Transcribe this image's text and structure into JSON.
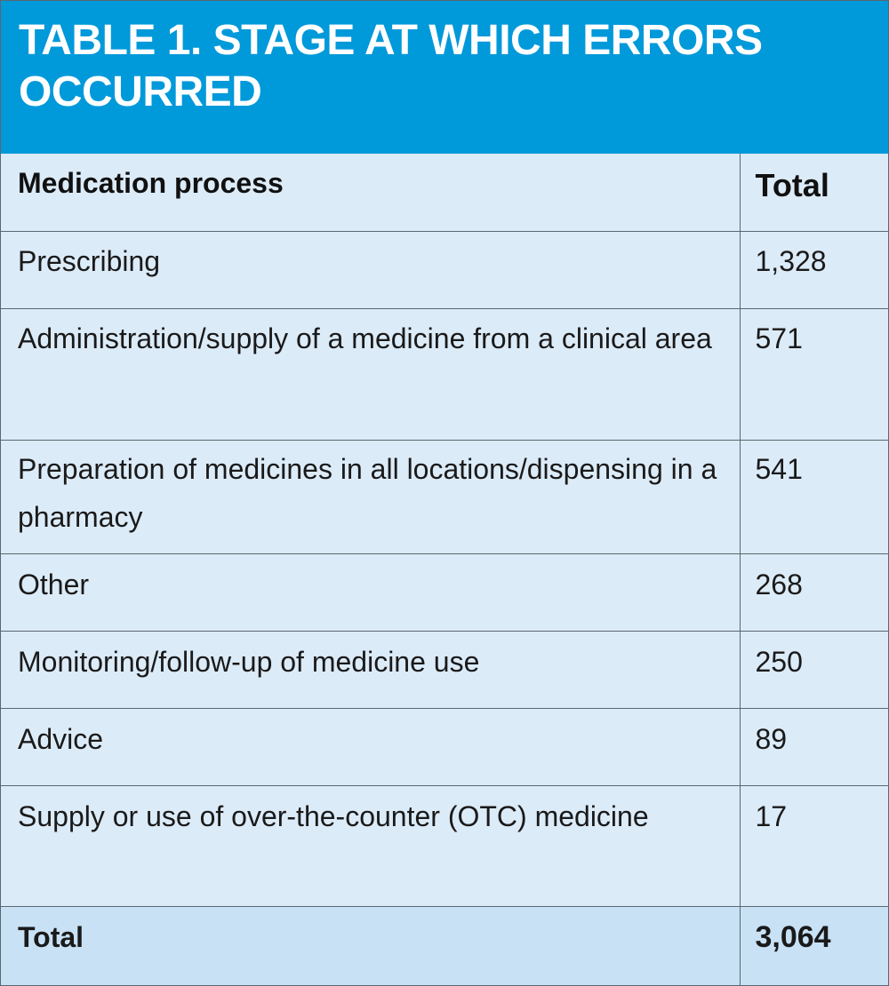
{
  "table": {
    "title": "TABLE 1. STAGE AT WHICH ERRORS\nOCCURRED",
    "headers": [
      "Medication process",
      "Total"
    ],
    "rows": [
      {
        "process": "Prescribing",
        "total": "1,328"
      },
      {
        "process": "Administration/supply of a medicine from a clinical area",
        "total": "571"
      },
      {
        "process": "Preparation of medicines in all locations/dispensing in a pharmacy",
        "total": "541"
      },
      {
        "process": "Other",
        "total": "268"
      },
      {
        "process": "Monitoring/follow-up of medicine use",
        "total": "250"
      },
      {
        "process": "Advice",
        "total": "89"
      },
      {
        "process": "Supply or use of over-the-counter (OTC) medicine",
        "total": "17"
      }
    ],
    "footer": {
      "process": "Total",
      "total": "3,064"
    }
  },
  "colors": {
    "title_background": "#0099da",
    "title_text": "#ffffff",
    "row_background": "#dcebf8",
    "total_row_background": "#c8e1f5",
    "border": "#5b6770"
  }
}
